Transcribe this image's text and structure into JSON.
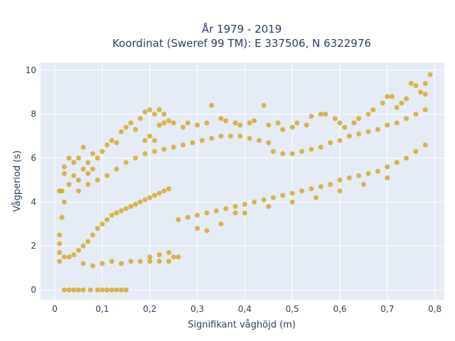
{
  "chart_data": {
    "type": "scatter",
    "title_line1": "År 1979 - 2019",
    "title_line2": "Koordinat (Sweref 99 TM): E 337506, N 6322976",
    "xlabel": "Signifikant våghöjd (m)",
    "ylabel": "Vågperiod (s)",
    "xlim": [
      -0.03,
      0.82
    ],
    "ylim": [
      -0.45,
      10.35
    ],
    "x_ticks": [
      0,
      0.1,
      0.2,
      0.3,
      0.4,
      0.5,
      0.6,
      0.7,
      0.8
    ],
    "x_tick_labels": [
      "0",
      "0,1",
      "0,2",
      "0,3",
      "0,4",
      "0,5",
      "0,6",
      "0,7",
      "0,8"
    ],
    "y_ticks": [
      0,
      2,
      4,
      6,
      8,
      10
    ],
    "y_tick_labels": [
      "0",
      "2",
      "4",
      "6",
      "8",
      "10"
    ],
    "grid": true,
    "plot_background": "#e5ecf6",
    "grid_color": "#ffffff",
    "marker_color": "#d4a420",
    "marker_opacity": 0.8,
    "series": [
      {
        "points": [
          [
            0.02,
            0.0
          ],
          [
            0.03,
            0.0
          ],
          [
            0.04,
            0.0
          ],
          [
            0.05,
            0.0
          ],
          [
            0.06,
            0.0
          ],
          [
            0.075,
            0.0
          ],
          [
            0.09,
            0.0
          ],
          [
            0.1,
            0.0
          ],
          [
            0.11,
            0.0
          ],
          [
            0.12,
            0.0
          ],
          [
            0.13,
            0.0
          ],
          [
            0.14,
            0.0
          ],
          [
            0.15,
            0.0
          ],
          [
            0.01,
            2.5
          ],
          [
            0.01,
            1.3
          ],
          [
            0.01,
            1.7
          ],
          [
            0.01,
            2.1
          ],
          [
            0.015,
            3.3
          ],
          [
            0.015,
            4.5
          ],
          [
            0.01,
            4.5
          ],
          [
            0.02,
            5.3
          ],
          [
            0.02,
            5.6
          ],
          [
            0.03,
            6.0
          ],
          [
            0.04,
            5.8
          ],
          [
            0.05,
            6.0
          ],
          [
            0.06,
            6.5
          ],
          [
            0.06,
            5.5
          ],
          [
            0.07,
            5.8
          ],
          [
            0.08,
            6.2
          ],
          [
            0.09,
            6.0
          ],
          [
            0.02,
            4.0
          ],
          [
            0.03,
            4.8
          ],
          [
            0.04,
            5.2
          ],
          [
            0.05,
            5.0
          ],
          [
            0.07,
            5.3
          ],
          [
            0.08,
            5.5
          ],
          [
            0.1,
            6.3
          ],
          [
            0.11,
            6.6
          ],
          [
            0.12,
            6.8
          ],
          [
            0.13,
            6.7
          ],
          [
            0.14,
            7.2
          ],
          [
            0.15,
            7.4
          ],
          [
            0.16,
            7.6
          ],
          [
            0.17,
            7.3
          ],
          [
            0.18,
            7.8
          ],
          [
            0.19,
            8.1
          ],
          [
            0.2,
            8.2
          ],
          [
            0.21,
            8.0
          ],
          [
            0.22,
            8.2
          ],
          [
            0.23,
            8.0
          ],
          [
            0.24,
            7.7
          ],
          [
            0.19,
            6.8
          ],
          [
            0.2,
            7.0
          ],
          [
            0.21,
            6.8
          ],
          [
            0.22,
            7.5
          ],
          [
            0.23,
            7.6
          ],
          [
            0.25,
            7.6
          ],
          [
            0.27,
            7.4
          ],
          [
            0.28,
            7.6
          ],
          [
            0.3,
            7.5
          ],
          [
            0.32,
            7.6
          ],
          [
            0.33,
            8.4
          ],
          [
            0.35,
            7.8
          ],
          [
            0.36,
            7.7
          ],
          [
            0.38,
            7.6
          ],
          [
            0.39,
            7.5
          ],
          [
            0.41,
            7.6
          ],
          [
            0.42,
            7.7
          ],
          [
            0.44,
            8.4
          ],
          [
            0.45,
            7.5
          ],
          [
            0.47,
            7.6
          ],
          [
            0.48,
            7.3
          ],
          [
            0.5,
            7.4
          ],
          [
            0.51,
            7.6
          ],
          [
            0.53,
            7.5
          ],
          [
            0.54,
            7.9
          ],
          [
            0.56,
            8.0
          ],
          [
            0.57,
            8.0
          ],
          [
            0.59,
            7.8
          ],
          [
            0.6,
            7.6
          ],
          [
            0.61,
            7.4
          ],
          [
            0.63,
            7.6
          ],
          [
            0.64,
            7.8
          ],
          [
            0.66,
            8.0
          ],
          [
            0.67,
            8.2
          ],
          [
            0.69,
            8.5
          ],
          [
            0.7,
            8.8
          ],
          [
            0.71,
            8.8
          ],
          [
            0.72,
            8.3
          ],
          [
            0.73,
            8.5
          ],
          [
            0.74,
            8.7
          ],
          [
            0.75,
            9.4
          ],
          [
            0.76,
            9.3
          ],
          [
            0.77,
            9.0
          ],
          [
            0.78,
            8.9
          ],
          [
            0.79,
            9.8
          ],
          [
            0.78,
            9.4
          ],
          [
            0.06,
            1.2
          ],
          [
            0.08,
            1.1
          ],
          [
            0.1,
            1.2
          ],
          [
            0.12,
            1.3
          ],
          [
            0.14,
            1.2
          ],
          [
            0.16,
            1.3
          ],
          [
            0.18,
            1.3
          ],
          [
            0.2,
            1.3
          ],
          [
            0.22,
            1.3
          ],
          [
            0.24,
            1.3
          ],
          [
            0.25,
            1.5
          ],
          [
            0.26,
            1.5
          ],
          [
            0.24,
            1.7
          ],
          [
            0.22,
            1.6
          ],
          [
            0.2,
            1.5
          ],
          [
            0.02,
            1.5
          ],
          [
            0.03,
            1.5
          ],
          [
            0.04,
            1.6
          ],
          [
            0.05,
            1.8
          ],
          [
            0.06,
            2.0
          ],
          [
            0.07,
            2.2
          ],
          [
            0.08,
            2.5
          ],
          [
            0.09,
            2.8
          ],
          [
            0.1,
            3.0
          ],
          [
            0.11,
            3.2
          ],
          [
            0.12,
            3.4
          ],
          [
            0.13,
            3.5
          ],
          [
            0.14,
            3.6
          ],
          [
            0.15,
            3.7
          ],
          [
            0.16,
            3.8
          ],
          [
            0.17,
            3.9
          ],
          [
            0.18,
            4.0
          ],
          [
            0.19,
            4.1
          ],
          [
            0.2,
            4.2
          ],
          [
            0.21,
            4.3
          ],
          [
            0.22,
            4.4
          ],
          [
            0.23,
            4.5
          ],
          [
            0.24,
            4.6
          ],
          [
            0.05,
            4.5
          ],
          [
            0.07,
            4.8
          ],
          [
            0.09,
            5.0
          ],
          [
            0.11,
            5.2
          ],
          [
            0.13,
            5.5
          ],
          [
            0.15,
            5.8
          ],
          [
            0.17,
            6.0
          ],
          [
            0.19,
            6.2
          ],
          [
            0.21,
            6.3
          ],
          [
            0.23,
            6.4
          ],
          [
            0.25,
            6.5
          ],
          [
            0.27,
            6.6
          ],
          [
            0.29,
            6.7
          ],
          [
            0.31,
            6.8
          ],
          [
            0.33,
            6.9
          ],
          [
            0.35,
            7.0
          ],
          [
            0.37,
            7.0
          ],
          [
            0.39,
            7.0
          ],
          [
            0.41,
            6.9
          ],
          [
            0.43,
            6.8
          ],
          [
            0.45,
            6.7
          ],
          [
            0.26,
            3.2
          ],
          [
            0.28,
            3.3
          ],
          [
            0.3,
            3.4
          ],
          [
            0.32,
            3.5
          ],
          [
            0.34,
            3.6
          ],
          [
            0.36,
            3.7
          ],
          [
            0.38,
            3.8
          ],
          [
            0.4,
            3.9
          ],
          [
            0.42,
            4.0
          ],
          [
            0.44,
            4.1
          ],
          [
            0.46,
            4.2
          ],
          [
            0.48,
            4.3
          ],
          [
            0.5,
            4.4
          ],
          [
            0.52,
            4.5
          ],
          [
            0.54,
            4.6
          ],
          [
            0.56,
            4.7
          ],
          [
            0.58,
            4.8
          ],
          [
            0.6,
            5.0
          ],
          [
            0.62,
            5.1
          ],
          [
            0.64,
            5.2
          ],
          [
            0.66,
            5.3
          ],
          [
            0.68,
            5.4
          ],
          [
            0.7,
            5.6
          ],
          [
            0.72,
            5.8
          ],
          [
            0.74,
            6.0
          ],
          [
            0.76,
            6.3
          ],
          [
            0.78,
            6.6
          ],
          [
            0.3,
            2.8
          ],
          [
            0.32,
            2.7
          ],
          [
            0.35,
            3.0
          ],
          [
            0.38,
            3.5
          ],
          [
            0.4,
            3.5
          ],
          [
            0.45,
            3.8
          ],
          [
            0.5,
            4.0
          ],
          [
            0.55,
            4.2
          ],
          [
            0.6,
            4.5
          ],
          [
            0.65,
            4.8
          ],
          [
            0.7,
            5.1
          ],
          [
            0.46,
            6.3
          ],
          [
            0.48,
            6.2
          ],
          [
            0.5,
            6.2
          ],
          [
            0.52,
            6.3
          ],
          [
            0.54,
            6.4
          ],
          [
            0.56,
            6.5
          ],
          [
            0.58,
            6.7
          ],
          [
            0.6,
            6.8
          ],
          [
            0.62,
            7.0
          ],
          [
            0.64,
            7.1
          ],
          [
            0.66,
            7.2
          ],
          [
            0.68,
            7.3
          ],
          [
            0.7,
            7.5
          ],
          [
            0.72,
            7.6
          ],
          [
            0.74,
            7.8
          ],
          [
            0.76,
            8.0
          ],
          [
            0.78,
            8.2
          ]
        ]
      }
    ]
  }
}
